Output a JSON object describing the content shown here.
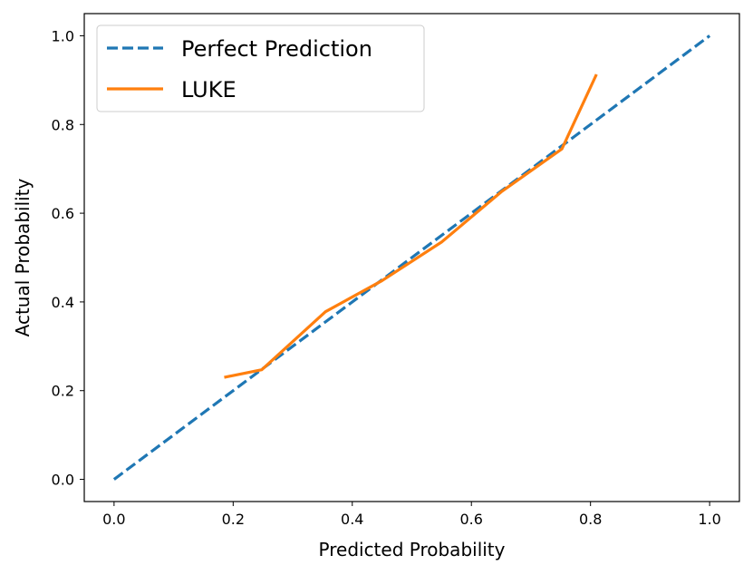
{
  "chart_data": {
    "type": "line",
    "title": "",
    "xlabel": "Predicted Probability",
    "ylabel": "Actual Probability",
    "xlim": [
      -0.05,
      1.05
    ],
    "ylim": [
      -0.05,
      1.05
    ],
    "xticks": [
      "0.0",
      "0.2",
      "0.4",
      "0.6",
      "0.8",
      "1.0"
    ],
    "yticks": [
      "0.0",
      "0.2",
      "0.4",
      "0.6",
      "0.8",
      "1.0"
    ],
    "grid": false,
    "legend_position": "top-left",
    "series": [
      {
        "name": "Perfect Prediction",
        "style": "dashed",
        "color": "#1f77b4",
        "x": [
          0.0,
          1.0
        ],
        "y": [
          0.0,
          1.0
        ]
      },
      {
        "name": "LUKE",
        "style": "solid",
        "color": "#ff7f0e",
        "x": [
          0.185,
          0.248,
          0.355,
          0.45,
          0.55,
          0.65,
          0.752,
          0.81
        ],
        "y": [
          0.23,
          0.247,
          0.378,
          0.448,
          0.535,
          0.648,
          0.745,
          0.913
        ]
      }
    ]
  }
}
